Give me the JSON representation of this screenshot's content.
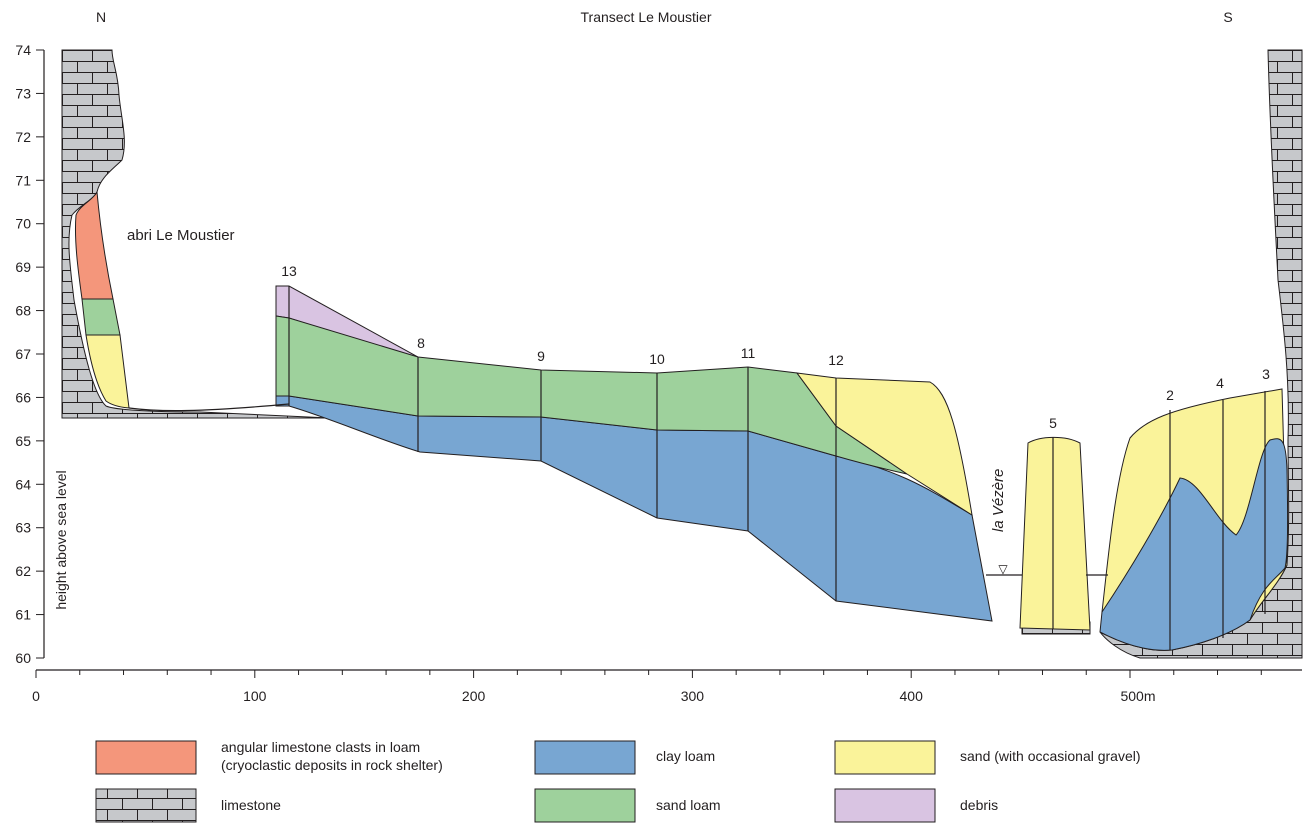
{
  "header": {
    "title": "Transect Le Moustier",
    "north_label": "N",
    "south_label": "S"
  },
  "axes": {
    "y_label": "height above sea level",
    "y_ticks": [
      "60",
      "61",
      "62",
      "63",
      "64",
      "65",
      "66",
      "67",
      "68",
      "69",
      "70",
      "71",
      "72",
      "73",
      "74"
    ],
    "x_ticks": [
      "0",
      "100",
      "200",
      "300",
      "400",
      "500m"
    ],
    "x_unit": "m",
    "x_range": [
      0,
      570
    ],
    "y_range": [
      60,
      74
    ]
  },
  "annotations": {
    "shelter_label": "abri Le Moustier",
    "river_label": "la Vézère",
    "water_symbol": "▽"
  },
  "borings": [
    "13",
    "8",
    "9",
    "10",
    "11",
    "12",
    "5",
    "2",
    "4",
    "3"
  ],
  "legend": {
    "items": [
      {
        "key": "clasts",
        "label_line1": "angular limestone clasts in loam",
        "label_line2": "(cryoclastic deposits in rock shelter)",
        "color": "#f4967b"
      },
      {
        "key": "limestone",
        "label_line1": "limestone",
        "label_line2": "",
        "color": "#c6c8cb"
      },
      {
        "key": "clay-loam",
        "label_line1": "clay loam",
        "label_line2": "",
        "color": "#78a6d2"
      },
      {
        "key": "sand-loam",
        "label_line1": "sand loam",
        "label_line2": "",
        "color": "#9ed19c"
      },
      {
        "key": "sand",
        "label_line1": "sand (with occasional gravel)",
        "label_line2": "",
        "color": "#faf39a"
      },
      {
        "key": "debris",
        "label_line1": "debris",
        "label_line2": "",
        "color": "#d9c4e2"
      }
    ]
  },
  "colors": {
    "clasts": "#f4967b",
    "limestone": "#c6c8cb",
    "clay_loam": "#78a6d2",
    "sand_loam": "#9ed19c",
    "sand": "#faf39a",
    "debris": "#d9c4e2",
    "line": "#231f20"
  }
}
